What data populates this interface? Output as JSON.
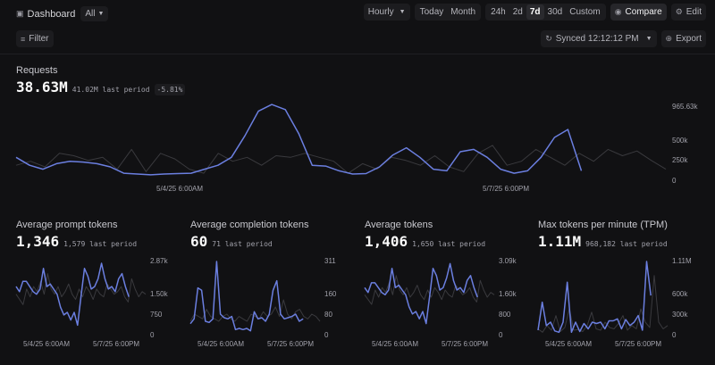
{
  "header": {
    "title": "Dashboard",
    "scope": "All",
    "granularity": "Hourly",
    "quick_ranges": [
      "Today",
      "Month"
    ],
    "ranges": [
      "24h",
      "2d",
      "7d",
      "30d",
      "Custom"
    ],
    "active_range": "7d",
    "compare": "Compare",
    "edit": "Edit",
    "filter": "Filter",
    "synced": "Synced 12:12:12 PM",
    "export": "Export"
  },
  "colors": {
    "background": "#111113",
    "current": "#6b7fe0",
    "previous": "#3a3a3e"
  },
  "requests": {
    "title": "Requests",
    "value": "38.63M",
    "previous": "41.02M last period",
    "change": "-5.81%",
    "y_ticks": [
      "965.63k",
      "500k",
      "250k",
      "0"
    ],
    "x_ticks": [
      "5/4/25 6:00AM",
      "5/7/25 6:00PM"
    ]
  },
  "panels": [
    {
      "title": "Average prompt tokens",
      "value": "1,346",
      "previous": "1,579 last period",
      "y_ticks": [
        "2.87k",
        "1.50k",
        "750",
        "0"
      ],
      "x_ticks": [
        "5/4/25 6:00AM",
        "5/7/25 6:00PM"
      ]
    },
    {
      "title": "Average completion tokens",
      "value": "60",
      "previous": "71 last period",
      "y_ticks": [
        "311",
        "160",
        "80",
        "0"
      ],
      "x_ticks": [
        "5/4/25 6:00AM",
        "5/7/25 6:00PM"
      ]
    },
    {
      "title": "Average tokens",
      "value": "1,406",
      "previous": "1,650 last period",
      "y_ticks": [
        "3.09k",
        "1.60k",
        "800",
        "0"
      ],
      "x_ticks": [
        "5/4/25 6:00AM",
        "5/7/25 6:00PM"
      ]
    },
    {
      "title": "Max tokens per minute (TPM)",
      "value": "1.11M",
      "previous": "968,182 last period",
      "y_ticks": [
        "1.11M",
        "600k",
        "300k",
        "0"
      ],
      "x_ticks": [
        "5/4/25 6:00AM",
        "5/7/25 6:00PM"
      ]
    }
  ],
  "chart_data": [
    {
      "type": "line",
      "ylim": [
        0,
        965630
      ],
      "series": [
        {
          "values": [
            300000,
            200000,
            150000,
            220000,
            250000,
            240000,
            220000,
            180000,
            100000,
            90000,
            80000,
            90000,
            95000,
            100000,
            150000,
            200000,
            300000,
            570000,
            880000,
            965000,
            900000,
            600000,
            200000,
            190000,
            130000,
            90000,
            95000,
            180000,
            330000,
            420000,
            300000,
            150000,
            130000,
            370000,
            400000,
            300000,
            150000,
            100000,
            130000,
            300000,
            550000,
            650000,
            130000
          ]
        },
        {
          "values": [
            200000,
            250000,
            180000,
            350000,
            320000,
            260000,
            300000,
            150000,
            400000,
            120000,
            350000,
            280000,
            150000,
            100000,
            350000,
            250000,
            300000,
            200000,
            320000,
            300000,
            350000,
            300000,
            250000,
            100000,
            220000,
            150000,
            300000,
            260000,
            200000,
            320000,
            180000,
            120000,
            350000,
            450000,
            200000,
            250000,
            400000,
            300000,
            200000,
            350000,
            250000,
            400000,
            320000,
            380000,
            260000,
            150000
          ]
        }
      ]
    },
    {
      "type": "line",
      "ylim": [
        0,
        2870
      ],
      "series": [
        {
          "values": [
            1900,
            1700,
            2100,
            2100,
            1900,
            1700,
            1600,
            1800,
            2600,
            1900,
            2000,
            1800,
            1600,
            1100,
            800,
            900,
            600,
            900,
            400,
            1500,
            2600,
            2300,
            1800,
            1900,
            2200,
            2800,
            2200,
            1800,
            1900,
            1700,
            2200,
            2400,
            1900,
            1500
          ]
        },
        {
          "values": [
            1600,
            1400,
            1200,
            1800,
            1500,
            1900,
            1700,
            2100,
            1600,
            2400,
            1800,
            1600,
            1900,
            1500,
            1700,
            2000,
            1600,
            1400,
            1800,
            1500,
            1900,
            1700,
            1400,
            1800,
            1600,
            1500,
            2000,
            1800,
            1600,
            1700,
            1900,
            1500,
            1300,
            2200,
            1800,
            1500,
            1700,
            1600
          ]
        }
      ]
    },
    {
      "type": "line",
      "ylim": [
        0,
        311
      ],
      "series": [
        {
          "values": [
            50,
            70,
            200,
            190,
            60,
            55,
            70,
            311,
            90,
            75,
            70,
            80,
            25,
            30,
            25,
            30,
            20,
            100,
            70,
            75,
            60,
            90,
            190,
            230,
            90,
            70,
            75,
            80,
            90,
            60,
            70
          ]
        },
        {
          "values": [
            60,
            90,
            80,
            70,
            110,
            80,
            70,
            60,
            80,
            90,
            70,
            60,
            80,
            70,
            60,
            90,
            80,
            70,
            100,
            80,
            90,
            120,
            80,
            150,
            90,
            70,
            100,
            110,
            80,
            70,
            90,
            80,
            60
          ]
        }
      ]
    },
    {
      "type": "line",
      "ylim": [
        0,
        3090
      ],
      "series": [
        {
          "values": [
            2000,
            1800,
            2200,
            2200,
            2000,
            1800,
            1700,
            1900,
            2800,
            2000,
            2100,
            1900,
            1700,
            1200,
            900,
            1000,
            700,
            1000,
            500,
            1600,
            2800,
            2500,
            1900,
            2000,
            2400,
            3000,
            2300,
            1900,
            2000,
            1800,
            2300,
            2500,
            2000,
            1600
          ]
        },
        {
          "values": [
            1700,
            1500,
            1300,
            1900,
            1600,
            2000,
            1800,
            2200,
            1700,
            2500,
            1900,
            1700,
            2000,
            1600,
            1800,
            2100,
            1700,
            1500,
            1900,
            1600,
            2000,
            1800,
            1500,
            1900,
            1700,
            1600,
            2100,
            1900,
            1700,
            1800,
            2000,
            1600,
            1400,
            2300,
            1900,
            1600,
            1800,
            1700
          ]
        }
      ]
    },
    {
      "type": "line",
      "ylim": [
        0,
        1110000
      ],
      "series": [
        {
          "values": [
            80000,
            500000,
            150000,
            200000,
            70000,
            50000,
            200000,
            800000,
            50000,
            200000,
            60000,
            180000,
            100000,
            200000,
            180000,
            200000,
            100000,
            220000,
            220000,
            250000,
            100000,
            240000,
            150000,
            200000,
            300000,
            80000,
            1110000,
            600000
          ]
        },
        {
          "values": [
            100000,
            50000,
            150000,
            80000,
            300000,
            60000,
            120000,
            400000,
            80000,
            90000,
            60000,
            150000,
            350000,
            100000,
            80000,
            200000,
            120000,
            100000,
            180000,
            300000,
            80000,
            150000,
            100000,
            400000,
            200000,
            120000,
            900000,
            200000,
            100000,
            150000
          ]
        }
      ]
    }
  ]
}
